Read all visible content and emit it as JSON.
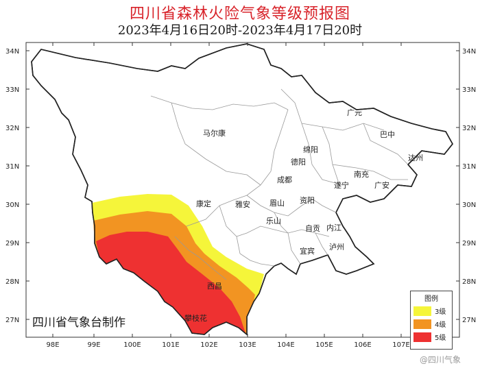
{
  "title": "四川省森林火险气象等级预报图",
  "subtitle": "2023年4月16日20时-2023年4月17日20时",
  "axes": {
    "lon_labels": [
      "98E",
      "99E",
      "100E",
      "101E",
      "102E",
      "103E",
      "104E",
      "105E",
      "106E",
      "107E"
    ],
    "lat_labels": [
      "34N",
      "33N",
      "32N",
      "31N",
      "30N",
      "29N",
      "28N",
      "27N"
    ]
  },
  "cities": [
    "广元",
    "巴中",
    "达州",
    "绵阳",
    "德阳",
    "南充",
    "成都",
    "遂宁",
    "广安",
    "马尔康",
    "康定",
    "雅安",
    "眉山",
    "资阳",
    "乐山",
    "自贡",
    "内江",
    "宜宾",
    "泸州",
    "西昌",
    "攀枝花"
  ],
  "legend": {
    "title": "图例",
    "items": [
      {
        "label": "3级",
        "color": "#f5f53a"
      },
      {
        "label": "4级",
        "color": "#f29422"
      },
      {
        "label": "5级",
        "color": "#ee3131"
      }
    ]
  },
  "credit": "四川省气象台制作",
  "watermark": "@四川气象"
}
